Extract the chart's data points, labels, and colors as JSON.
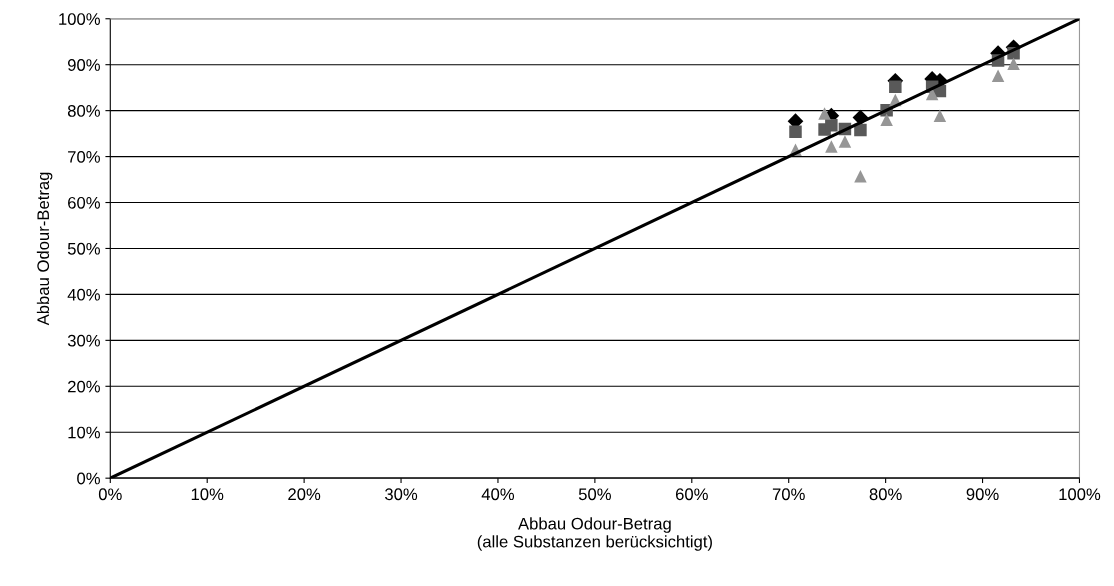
{
  "chart_data": {
    "type": "scatter",
    "xlabel": "Abbau Odour-Betrag\n(alle Substanzen berücksichtigt)",
    "ylabel": "Abbau Odour-Betrag",
    "xlim": [
      0,
      100
    ],
    "ylim": [
      0,
      100
    ],
    "xticks": [
      {
        "value": 0,
        "label": "0%"
      },
      {
        "value": 10,
        "label": "10%"
      },
      {
        "value": 20,
        "label": "20%"
      },
      {
        "value": 30,
        "label": "30%"
      },
      {
        "value": 40,
        "label": "40%"
      },
      {
        "value": 50,
        "label": "50%"
      },
      {
        "value": 60,
        "label": "60%"
      },
      {
        "value": 70,
        "label": "70%"
      },
      {
        "value": 80,
        "label": "80%"
      },
      {
        "value": 90,
        "label": "90%"
      },
      {
        "value": 100,
        "label": "100%"
      }
    ],
    "yticks": [
      {
        "value": 0,
        "label": "0%"
      },
      {
        "value": 10,
        "label": "10%"
      },
      {
        "value": 20,
        "label": "20%"
      },
      {
        "value": 30,
        "label": "30%"
      },
      {
        "value": 40,
        "label": "40%"
      },
      {
        "value": 50,
        "label": "50%"
      },
      {
        "value": 60,
        "label": "60%"
      },
      {
        "value": 70,
        "label": "70%"
      },
      {
        "value": 80,
        "label": "80%"
      },
      {
        "value": 90,
        "label": "90%"
      },
      {
        "value": 100,
        "label": "100%"
      }
    ],
    "grid": "y",
    "series": [
      {
        "type": "line",
        "color": "#000000",
        "marker": "none",
        "line_style": "solid",
        "x": [
          0,
          100
        ],
        "values": [
          0,
          100
        ]
      },
      {
        "color": "#000000",
        "marker": "diamond",
        "x": [
          70.7,
          74.4,
          77.4,
          81.0,
          84.8,
          85.6,
          91.6,
          93.2
        ],
        "values": [
          77.7,
          78.9,
          78.5,
          86.5,
          86.9,
          86.5,
          92.5,
          93.8
        ]
      },
      {
        "color": "#595959",
        "marker": "square",
        "x": [
          70.7,
          73.7,
          74.4,
          75.8,
          77.4,
          80.1,
          81.0,
          84.8,
          85.6,
          91.6,
          93.2
        ],
        "values": [
          75.4,
          75.9,
          76.8,
          76.0,
          75.8,
          80.1,
          85.2,
          85.2,
          84.3,
          90.9,
          92.5
        ]
      },
      {
        "color": "#969696",
        "marker": "triangle",
        "x": [
          70.7,
          73.7,
          74.4,
          75.8,
          77.4,
          80.1,
          81.0,
          84.8,
          85.6,
          91.6,
          93.2
        ],
        "values": [
          71.5,
          79.4,
          72.2,
          73.3,
          65.7,
          78.0,
          82.3,
          83.6,
          78.9,
          87.6,
          90.2
        ]
      }
    ]
  }
}
